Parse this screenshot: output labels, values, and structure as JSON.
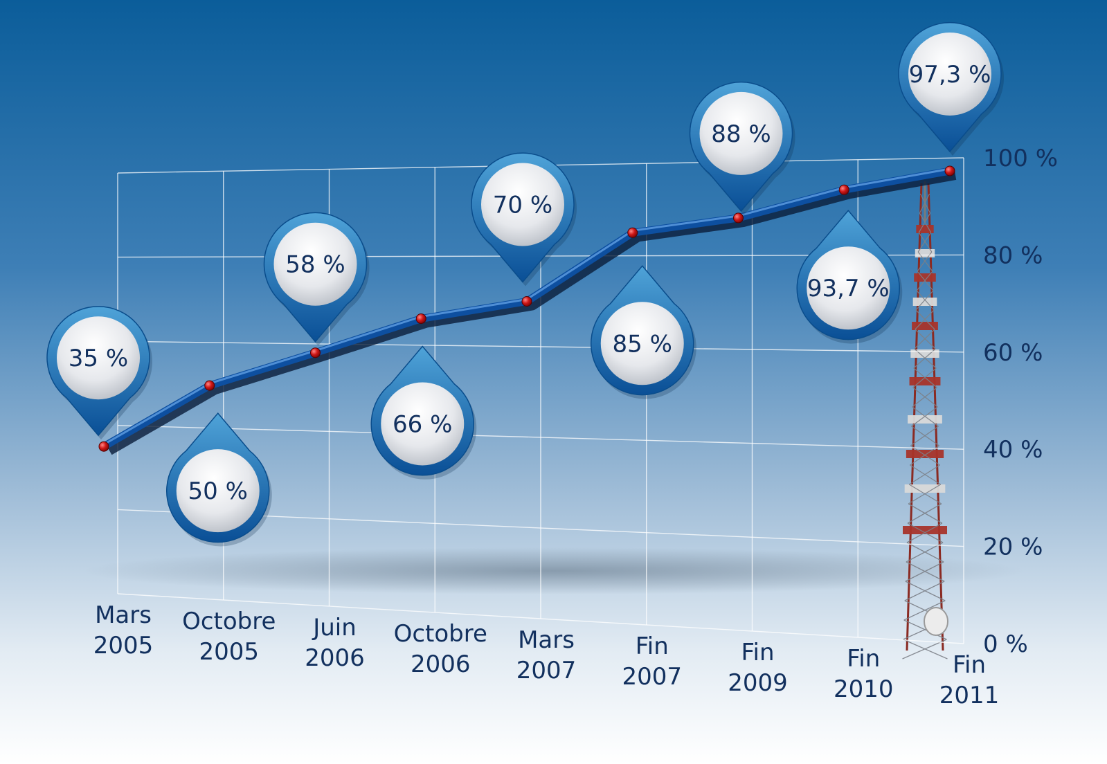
{
  "chart_data": {
    "type": "line",
    "categories": [
      [
        "Mars",
        "2005"
      ],
      [
        "Octobre",
        "2005"
      ],
      [
        "Juin",
        "2006"
      ],
      [
        "Octobre",
        "2006"
      ],
      [
        "Mars",
        "2007"
      ],
      [
        "Fin",
        "2007"
      ],
      [
        "Fin",
        "2009"
      ],
      [
        "Fin",
        "2010"
      ],
      [
        "Fin",
        "2011"
      ]
    ],
    "values": [
      35,
      50,
      58,
      66,
      70,
      85,
      88,
      93.7,
      97.3
    ],
    "data_labels": [
      "35 %",
      "50 %",
      "58 %",
      "66 %",
      "70 %",
      "85 %",
      "88 %",
      "93,7 %",
      "97,3 %"
    ],
    "yticks": [
      "0 %",
      "20 %",
      "40 %",
      "60 %",
      "80 %",
      "100 %"
    ],
    "ylim": [
      0,
      100
    ],
    "grid": true,
    "colors": {
      "line": "#0d4fa0",
      "marker": "#d01818",
      "text": "#12305e",
      "bg_top": "#0b5d9a",
      "bg_bottom": "#ffffff"
    }
  }
}
